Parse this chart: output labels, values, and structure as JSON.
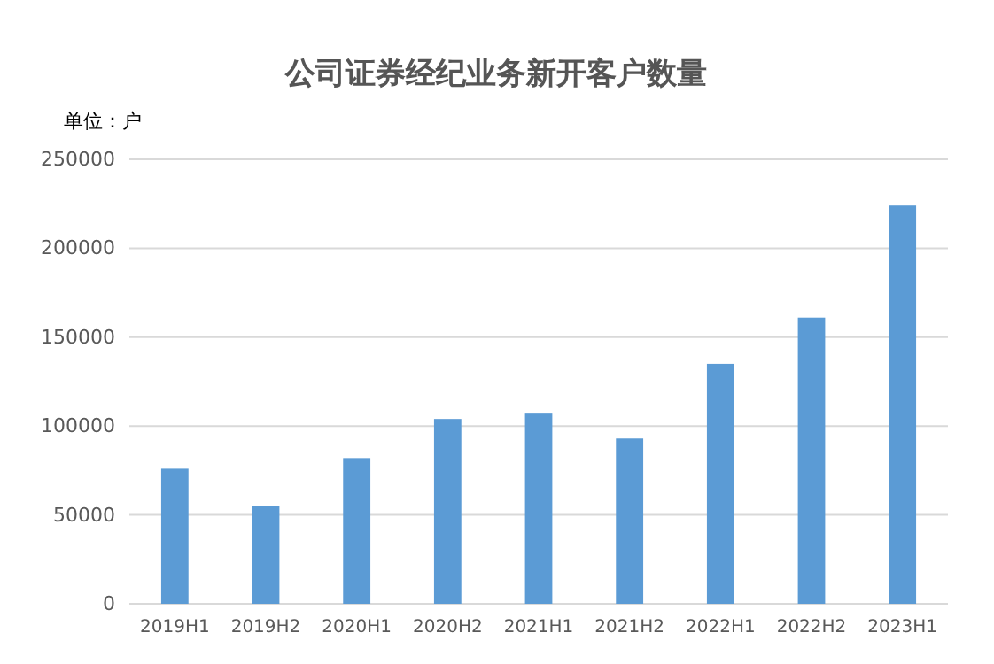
{
  "chart_data": {
    "type": "bar",
    "title": "公司证券经纪业务新开客户数量",
    "subtitle": "单位：户",
    "categories": [
      "2019H1",
      "2019H2",
      "2020H1",
      "2020H2",
      "2021H1",
      "2021H2",
      "2022H1",
      "2022H2",
      "2023H1"
    ],
    "values": [
      76000,
      55000,
      82000,
      104000,
      107000,
      93000,
      135000,
      161000,
      224000
    ],
    "color": "#5b9bd5",
    "ylim": [
      0,
      250000
    ],
    "yticks": [
      0,
      50000,
      100000,
      150000,
      200000,
      250000
    ],
    "grid": "y"
  }
}
